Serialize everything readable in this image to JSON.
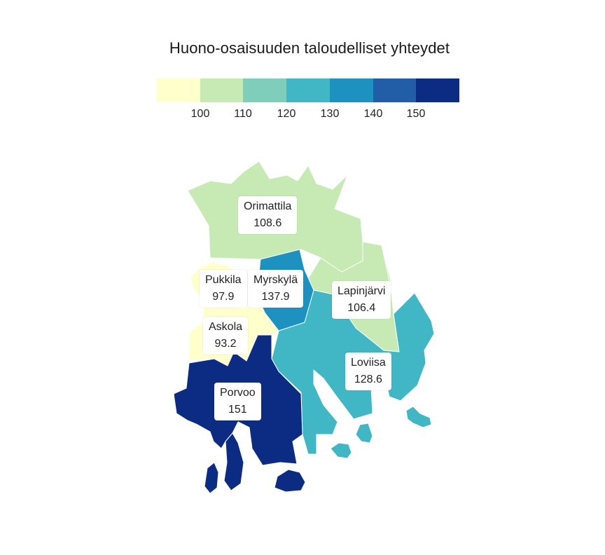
{
  "title": "Huono-osaisuuden taloudelliset yhteydet",
  "legend": {
    "colors": [
      "#ffffcc",
      "#c7e9b4",
      "#7fcdbb",
      "#41b6c4",
      "#1d91c0",
      "#225ea8",
      "#0c2c84"
    ],
    "ticks": [
      "100",
      "110",
      "120",
      "130",
      "140",
      "150"
    ]
  },
  "municipalities": [
    {
      "name": "Orimattila",
      "value": "108.6",
      "color": "#c7e9b4"
    },
    {
      "name": "Pukkila",
      "value": "97.9",
      "color": "#ffffcc"
    },
    {
      "name": "Myrskylä",
      "value": "137.9",
      "color": "#1d91c0"
    },
    {
      "name": "Lapinjärvi",
      "value": "106.4",
      "color": "#c7e9b4"
    },
    {
      "name": "Askola",
      "value": "93.2",
      "color": "#ffffcc"
    },
    {
      "name": "Loviisa",
      "value": "128.6",
      "color": "#41b6c4"
    },
    {
      "name": "Porvoo",
      "value": "151",
      "color": "#0c2c84"
    }
  ]
}
